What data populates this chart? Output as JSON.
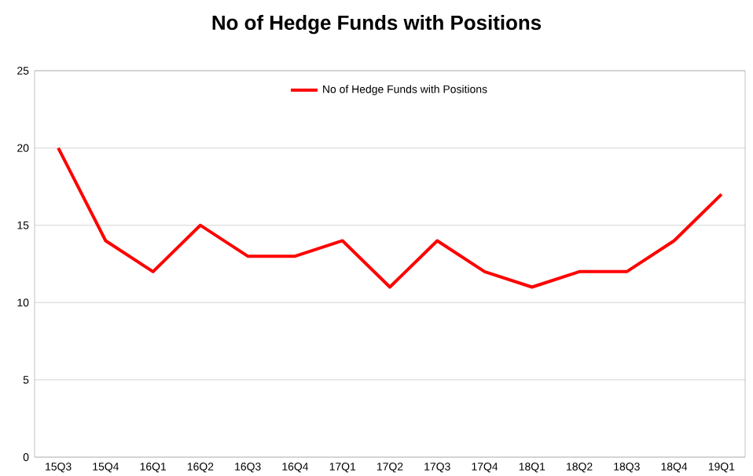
{
  "chart_data": {
    "type": "line",
    "title": "No of Hedge Funds with Positions",
    "categories": [
      "15Q3",
      "15Q4",
      "16Q1",
      "16Q2",
      "16Q3",
      "16Q4",
      "17Q1",
      "17Q2",
      "17Q3",
      "17Q4",
      "18Q1",
      "18Q2",
      "18Q3",
      "18Q4",
      "19Q1"
    ],
    "series": [
      {
        "name": "No of Hedge Funds with Positions",
        "color": "#ff0000",
        "values": [
          20,
          14,
          12,
          15,
          13,
          13,
          14,
          11,
          14,
          12,
          11,
          12,
          12,
          14,
          17
        ]
      }
    ],
    "ylim": [
      0,
      25
    ],
    "yticks": [
      0,
      5,
      10,
      15,
      20,
      25
    ],
    "grid": "y",
    "legend": "top",
    "marker": "none",
    "line_style": "solid"
  }
}
